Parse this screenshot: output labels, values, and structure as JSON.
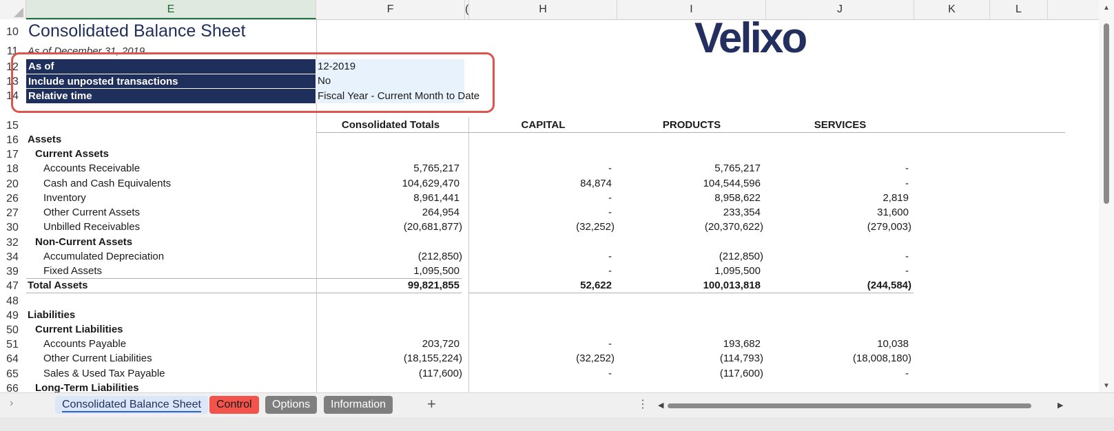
{
  "columns": [
    "E",
    "F",
    "(",
    "H",
    "I",
    "J",
    "K",
    "L"
  ],
  "row_numbers": [
    "10",
    "11",
    "12",
    "13",
    "14",
    "15",
    "16",
    "17",
    "18",
    "20",
    "26",
    "27",
    "30",
    "32",
    "34",
    "39",
    "47",
    "48",
    "49",
    "50",
    "51",
    "64",
    "65",
    "66"
  ],
  "title": "Consolidated Balance Sheet",
  "subtitle": "As of December 31, 2019",
  "logo_text": "Velixo",
  "params": [
    {
      "label": "As of",
      "value": "12-2019"
    },
    {
      "label": "Include unposted transactions",
      "value": "No"
    },
    {
      "label": "Relative time",
      "value": "Fiscal Year - Current Month to Date"
    }
  ],
  "headers": {
    "f": "Consolidated Totals",
    "h": "CAPITAL",
    "i": "PRODUCTS",
    "j": "SERVICES"
  },
  "rows": [
    {
      "label": "Assets",
      "f": "",
      "h": "",
      "i": "",
      "j": ""
    },
    {
      "label": "Current Assets",
      "f": "",
      "h": "",
      "i": "",
      "j": ""
    },
    {
      "label": "Accounts Receivable",
      "f": "5,765,217",
      "h": "-",
      "i": "5,765,217",
      "j": "-"
    },
    {
      "label": "Cash and Cash Equivalents",
      "f": "104,629,470",
      "h": "84,874",
      "i": "104,544,596",
      "j": "-"
    },
    {
      "label": "Inventory",
      "f": "8,961,441",
      "h": "-",
      "i": "8,958,622",
      "j": "2,819"
    },
    {
      "label": "Other Current Assets",
      "f": "264,954",
      "h": "-",
      "i": "233,354",
      "j": "31,600"
    },
    {
      "label": "Unbilled Receivables",
      "f": "(20,681,877)",
      "h": "(32,252)",
      "i": "(20,370,622)",
      "j": "(279,003)"
    },
    {
      "label": "Non-Current Assets",
      "f": "",
      "h": "",
      "i": "",
      "j": ""
    },
    {
      "label": "Accumulated Depreciation",
      "f": "(212,850)",
      "h": "-",
      "i": "(212,850)",
      "j": "-"
    },
    {
      "label": "Fixed Assets",
      "f": "1,095,500",
      "h": "-",
      "i": "1,095,500",
      "j": "-"
    },
    {
      "label": "Total Assets",
      "f": "99,821,855",
      "h": "52,622",
      "i": "100,013,818",
      "j": "(244,584)"
    },
    {
      "label": "",
      "f": "",
      "h": "",
      "i": "",
      "j": ""
    },
    {
      "label": "Liabilities",
      "f": "",
      "h": "",
      "i": "",
      "j": ""
    },
    {
      "label": "Current Liabilities",
      "f": "",
      "h": "",
      "i": "",
      "j": ""
    },
    {
      "label": "Accounts Payable",
      "f": "203,720",
      "h": "-",
      "i": "193,682",
      "j": "10,038"
    },
    {
      "label": "Other Current Liabilities",
      "f": "(18,155,224)",
      "h": "(32,252)",
      "i": "(114,793)",
      "j": "(18,008,180)"
    },
    {
      "label": "Sales & Used Tax Payable",
      "f": "(117,600)",
      "h": "-",
      "i": "(117,600)",
      "j": "-"
    },
    {
      "label": "Long-Term Liabilities",
      "f": "",
      "h": "",
      "i": "",
      "j": ""
    }
  ],
  "tabs": [
    "Consolidated Balance Sheet",
    "Control",
    "Options",
    "Information"
  ],
  "add_sheet": "+",
  "colors": {
    "navy": "#1f2f5c",
    "accent_red": "#e0524a",
    "tab_active": "#dbe7f9",
    "tab_control": "#f2534b",
    "tab_gray": "#7f7f7f"
  }
}
